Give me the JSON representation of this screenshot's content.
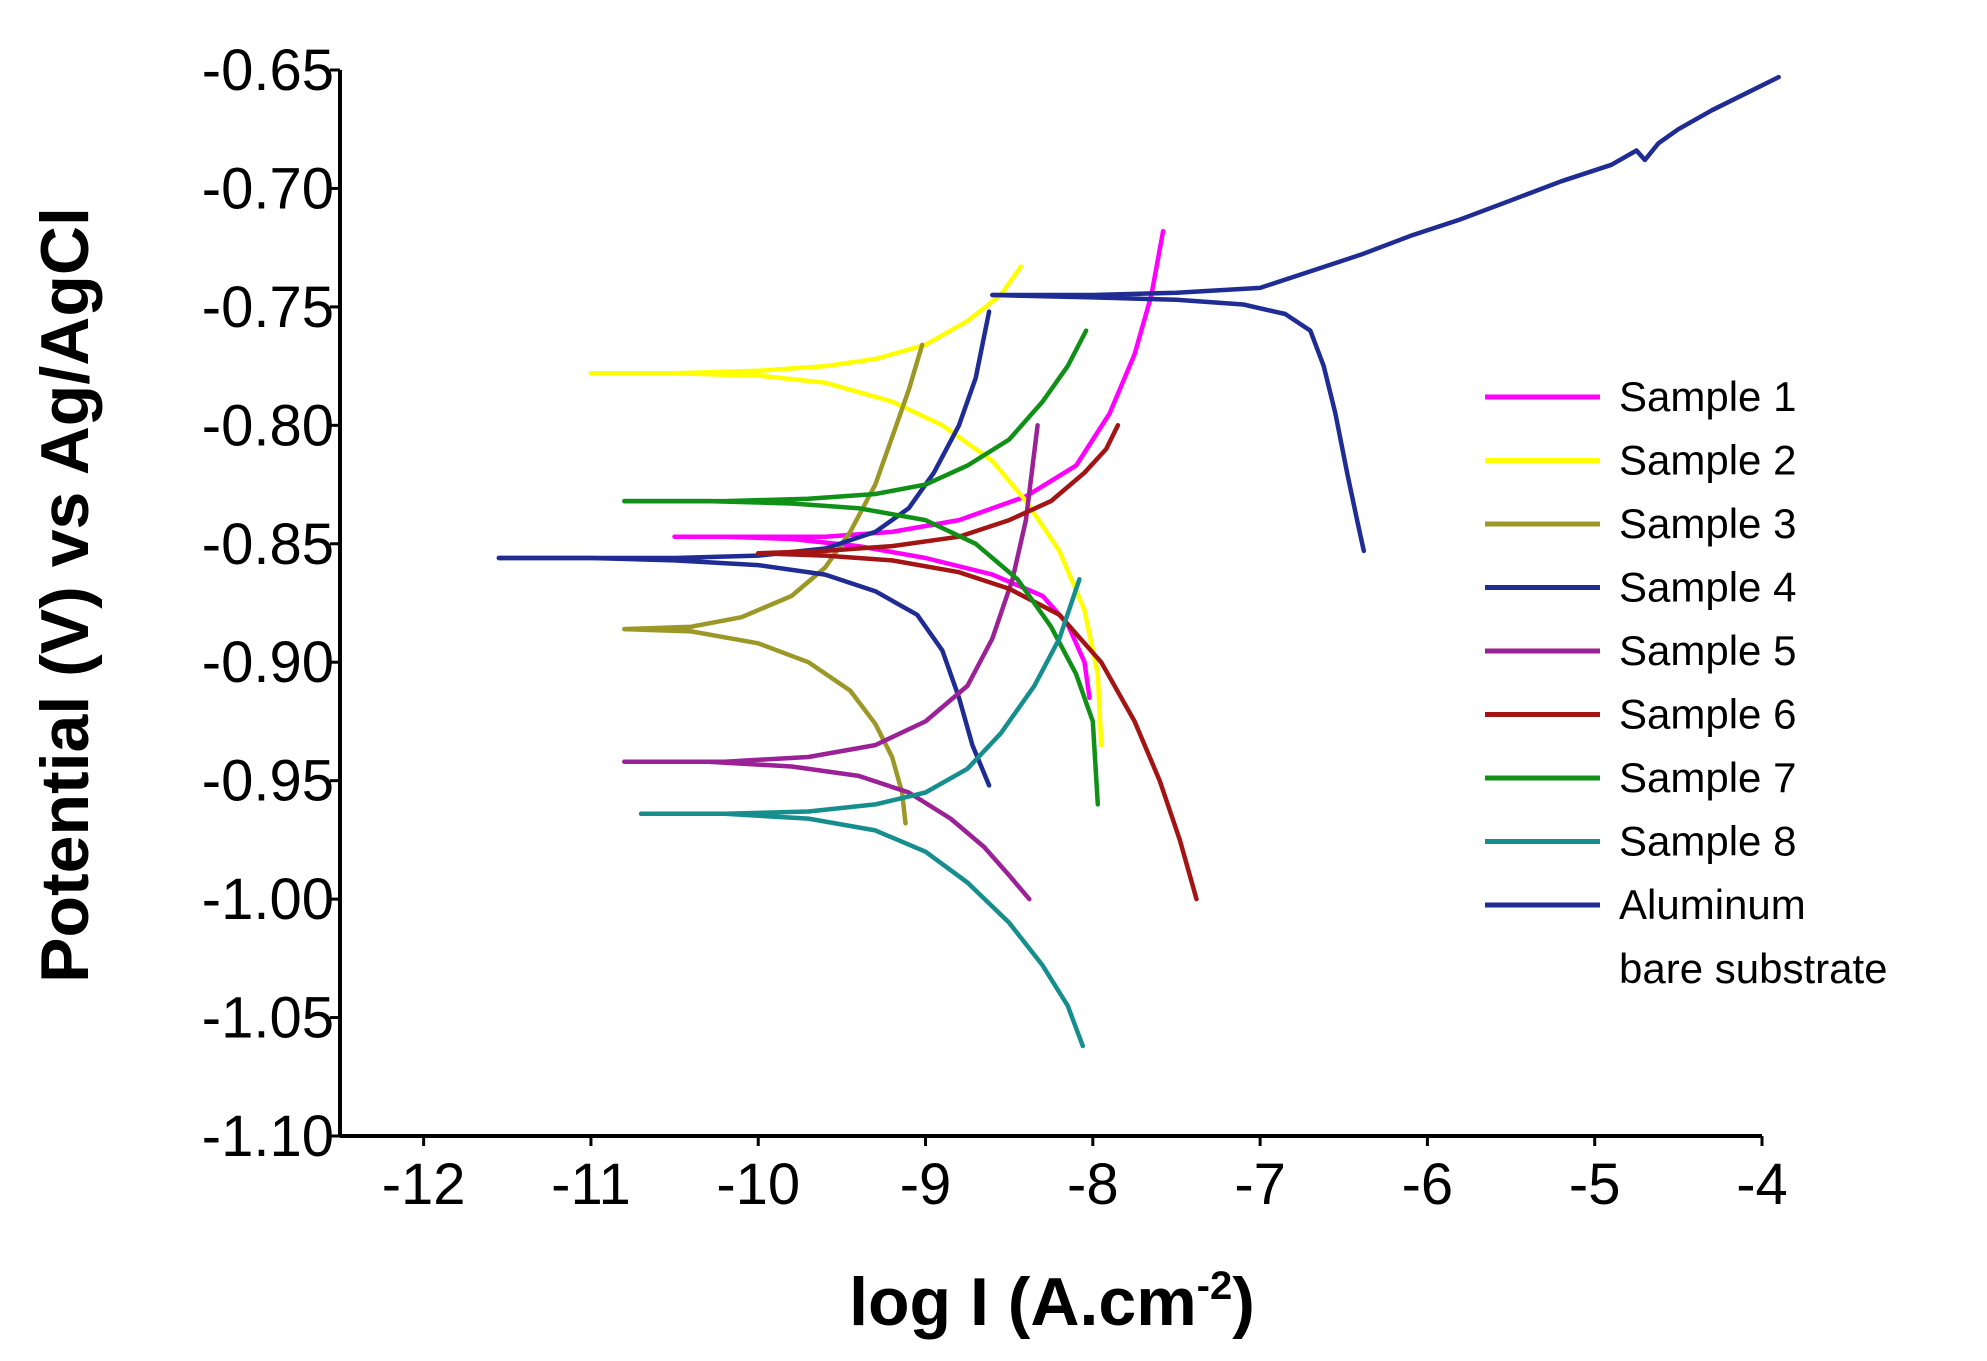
{
  "chart_data": {
    "type": "line",
    "title": "",
    "xlabel": "log I (A.cm",
    "xlabel_sup": "-2",
    "xlabel_suffix": ")",
    "ylabel": "Potential (V) vs Ag/AgCl",
    "xlim": [
      -12.5,
      -4
    ],
    "ylim": [
      -1.1,
      -0.65
    ],
    "x_ticks": [
      -12,
      -11,
      -10,
      -9,
      -8,
      -7,
      -6,
      -5,
      -4
    ],
    "x_tick_labels": [
      "-12",
      "-11",
      "-10",
      "-9",
      "-8",
      "-7",
      "-6",
      "-5",
      "-4"
    ],
    "y_ticks": [
      -0.65,
      -0.7,
      -0.75,
      -0.8,
      -0.85,
      -0.9,
      -0.95,
      -1.0,
      -1.05,
      -1.1
    ],
    "y_tick_labels": [
      "-0.65",
      "-0.70",
      "-0.75",
      "-0.80",
      "-0.85",
      "-0.90",
      "-0.95",
      "-1.00",
      "-1.05",
      "-1.10"
    ],
    "grid": false,
    "legend_position": "right",
    "series": [
      {
        "name": "Sample 1",
        "color": "#ff00ff",
        "cathodic": [
          [
            -10.5,
            -0.847
          ],
          [
            -10.2,
            -0.847
          ],
          [
            -9.8,
            -0.848
          ],
          [
            -9.4,
            -0.851
          ],
          [
            -9.0,
            -0.856
          ],
          [
            -8.6,
            -0.863
          ],
          [
            -8.3,
            -0.872
          ],
          [
            -8.15,
            -0.884
          ],
          [
            -8.05,
            -0.9
          ],
          [
            -8.02,
            -0.915
          ]
        ],
        "anodic": [
          [
            -10.5,
            -0.847
          ],
          [
            -10.0,
            -0.847
          ],
          [
            -9.6,
            -0.847
          ],
          [
            -9.2,
            -0.845
          ],
          [
            -8.8,
            -0.84
          ],
          [
            -8.4,
            -0.83
          ],
          [
            -8.1,
            -0.817
          ],
          [
            -7.9,
            -0.795
          ],
          [
            -7.75,
            -0.77
          ],
          [
            -7.65,
            -0.745
          ],
          [
            -7.58,
            -0.718
          ]
        ]
      },
      {
        "name": "Sample 2",
        "color": "#ffff00",
        "cathodic": [
          [
            -11.0,
            -0.778
          ],
          [
            -10.5,
            -0.778
          ],
          [
            -10.0,
            -0.779
          ],
          [
            -9.6,
            -0.782
          ],
          [
            -9.2,
            -0.79
          ],
          [
            -8.9,
            -0.8
          ],
          [
            -8.6,
            -0.815
          ],
          [
            -8.4,
            -0.832
          ],
          [
            -8.2,
            -0.853
          ],
          [
            -8.05,
            -0.878
          ],
          [
            -7.97,
            -0.905
          ],
          [
            -7.95,
            -0.935
          ]
        ],
        "anodic": [
          [
            -11.0,
            -0.778
          ],
          [
            -10.5,
            -0.778
          ],
          [
            -10.0,
            -0.777
          ],
          [
            -9.6,
            -0.775
          ],
          [
            -9.3,
            -0.772
          ],
          [
            -9.0,
            -0.766
          ],
          [
            -8.75,
            -0.756
          ],
          [
            -8.55,
            -0.745
          ],
          [
            -8.43,
            -0.733
          ]
        ]
      },
      {
        "name": "Sample 3",
        "color": "#9c9828",
        "cathodic": [
          [
            -10.8,
            -0.886
          ],
          [
            -10.4,
            -0.887
          ],
          [
            -10.0,
            -0.892
          ],
          [
            -9.7,
            -0.9
          ],
          [
            -9.45,
            -0.912
          ],
          [
            -9.3,
            -0.926
          ],
          [
            -9.2,
            -0.94
          ],
          [
            -9.14,
            -0.955
          ],
          [
            -9.12,
            -0.968
          ]
        ],
        "anodic": [
          [
            -10.8,
            -0.886
          ],
          [
            -10.4,
            -0.885
          ],
          [
            -10.1,
            -0.881
          ],
          [
            -9.8,
            -0.872
          ],
          [
            -9.6,
            -0.86
          ],
          [
            -9.45,
            -0.845
          ],
          [
            -9.3,
            -0.825
          ],
          [
            -9.2,
            -0.805
          ],
          [
            -9.1,
            -0.785
          ],
          [
            -9.02,
            -0.766
          ]
        ]
      },
      {
        "name": "Sample 4",
        "color": "#1f2c94",
        "cathodic": [
          [
            -11.55,
            -0.856
          ],
          [
            -11.0,
            -0.856
          ],
          [
            -10.5,
            -0.857
          ],
          [
            -10.0,
            -0.859
          ],
          [
            -9.6,
            -0.863
          ],
          [
            -9.3,
            -0.87
          ],
          [
            -9.05,
            -0.88
          ],
          [
            -8.9,
            -0.895
          ],
          [
            -8.8,
            -0.915
          ],
          [
            -8.72,
            -0.935
          ],
          [
            -8.62,
            -0.952
          ]
        ],
        "anodic": [
          [
            -11.55,
            -0.856
          ],
          [
            -11.0,
            -0.856
          ],
          [
            -10.5,
            -0.856
          ],
          [
            -10.0,
            -0.855
          ],
          [
            -9.6,
            -0.852
          ],
          [
            -9.3,
            -0.845
          ],
          [
            -9.1,
            -0.835
          ],
          [
            -8.95,
            -0.82
          ],
          [
            -8.8,
            -0.8
          ],
          [
            -8.7,
            -0.78
          ],
          [
            -8.62,
            -0.752
          ]
        ]
      },
      {
        "name": "Sample 5",
        "color": "#9b2196",
        "cathodic": [
          [
            -10.8,
            -0.942
          ],
          [
            -10.3,
            -0.942
          ],
          [
            -9.8,
            -0.944
          ],
          [
            -9.4,
            -0.948
          ],
          [
            -9.1,
            -0.955
          ],
          [
            -8.85,
            -0.966
          ],
          [
            -8.65,
            -0.978
          ],
          [
            -8.5,
            -0.99
          ],
          [
            -8.38,
            -1.0
          ]
        ],
        "anodic": [
          [
            -10.8,
            -0.942
          ],
          [
            -10.2,
            -0.942
          ],
          [
            -9.7,
            -0.94
          ],
          [
            -9.3,
            -0.935
          ],
          [
            -9.0,
            -0.925
          ],
          [
            -8.75,
            -0.91
          ],
          [
            -8.6,
            -0.89
          ],
          [
            -8.48,
            -0.865
          ],
          [
            -8.4,
            -0.84
          ],
          [
            -8.33,
            -0.8
          ]
        ]
      },
      {
        "name": "Sample 6",
        "color": "#a31515",
        "cathodic": [
          [
            -10.0,
            -0.854
          ],
          [
            -9.6,
            -0.855
          ],
          [
            -9.2,
            -0.857
          ],
          [
            -8.8,
            -0.862
          ],
          [
            -8.5,
            -0.869
          ],
          [
            -8.2,
            -0.88
          ],
          [
            -7.95,
            -0.9
          ],
          [
            -7.75,
            -0.925
          ],
          [
            -7.6,
            -0.95
          ],
          [
            -7.48,
            -0.975
          ],
          [
            -7.38,
            -1.0
          ]
        ],
        "anodic": [
          [
            -10.0,
            -0.854
          ],
          [
            -9.6,
            -0.853
          ],
          [
            -9.2,
            -0.851
          ],
          [
            -8.8,
            -0.847
          ],
          [
            -8.5,
            -0.84
          ],
          [
            -8.25,
            -0.832
          ],
          [
            -8.05,
            -0.82
          ],
          [
            -7.92,
            -0.81
          ],
          [
            -7.85,
            -0.8
          ]
        ]
      },
      {
        "name": "Sample 7",
        "color": "#119018",
        "cathodic": [
          [
            -10.8,
            -0.832
          ],
          [
            -10.3,
            -0.832
          ],
          [
            -9.8,
            -0.833
          ],
          [
            -9.4,
            -0.835
          ],
          [
            -9.0,
            -0.84
          ],
          [
            -8.7,
            -0.85
          ],
          [
            -8.45,
            -0.865
          ],
          [
            -8.25,
            -0.885
          ],
          [
            -8.1,
            -0.905
          ],
          [
            -8.0,
            -0.925
          ],
          [
            -7.97,
            -0.96
          ]
        ],
        "anodic": [
          [
            -10.8,
            -0.832
          ],
          [
            -10.2,
            -0.832
          ],
          [
            -9.7,
            -0.831
          ],
          [
            -9.3,
            -0.829
          ],
          [
            -9.0,
            -0.825
          ],
          [
            -8.75,
            -0.817
          ],
          [
            -8.5,
            -0.806
          ],
          [
            -8.3,
            -0.79
          ],
          [
            -8.15,
            -0.775
          ],
          [
            -8.04,
            -0.76
          ]
        ]
      },
      {
        "name": "Sample 8",
        "color": "#178e8e",
        "cathodic": [
          [
            -10.7,
            -0.964
          ],
          [
            -10.2,
            -0.964
          ],
          [
            -9.7,
            -0.966
          ],
          [
            -9.3,
            -0.971
          ],
          [
            -9.0,
            -0.98
          ],
          [
            -8.75,
            -0.993
          ],
          [
            -8.5,
            -1.01
          ],
          [
            -8.3,
            -1.028
          ],
          [
            -8.15,
            -1.045
          ],
          [
            -8.06,
            -1.062
          ]
        ],
        "anodic": [
          [
            -10.7,
            -0.964
          ],
          [
            -10.2,
            -0.964
          ],
          [
            -9.7,
            -0.963
          ],
          [
            -9.3,
            -0.96
          ],
          [
            -9.0,
            -0.955
          ],
          [
            -8.75,
            -0.945
          ],
          [
            -8.55,
            -0.93
          ],
          [
            -8.35,
            -0.91
          ],
          [
            -8.2,
            -0.89
          ],
          [
            -8.08,
            -0.865
          ]
        ]
      },
      {
        "name": "Aluminum bare substrate",
        "name_lines": [
          "Aluminum",
          "bare substrate"
        ],
        "color": "#1f2c94",
        "cathodic": [
          [
            -8.6,
            -0.745
          ],
          [
            -8.0,
            -0.746
          ],
          [
            -7.5,
            -0.747
          ],
          [
            -7.1,
            -0.749
          ],
          [
            -6.85,
            -0.753
          ],
          [
            -6.7,
            -0.76
          ],
          [
            -6.62,
            -0.775
          ],
          [
            -6.55,
            -0.795
          ],
          [
            -6.48,
            -0.82
          ],
          [
            -6.42,
            -0.84
          ],
          [
            -6.38,
            -0.853
          ]
        ],
        "anodic": [
          [
            -8.6,
            -0.745
          ],
          [
            -8.0,
            -0.745
          ],
          [
            -7.5,
            -0.744
          ],
          [
            -7.0,
            -0.742
          ],
          [
            -6.7,
            -0.735
          ],
          [
            -6.4,
            -0.728
          ],
          [
            -6.1,
            -0.72
          ],
          [
            -5.8,
            -0.713
          ],
          [
            -5.5,
            -0.705
          ],
          [
            -5.2,
            -0.697
          ],
          [
            -4.9,
            -0.69
          ],
          [
            -4.75,
            -0.684
          ],
          [
            -4.7,
            -0.688
          ],
          [
            -4.62,
            -0.681
          ],
          [
            -4.5,
            -0.675
          ],
          [
            -4.3,
            -0.667
          ],
          [
            -4.1,
            -0.66
          ],
          [
            -3.9,
            -0.653
          ]
        ]
      }
    ]
  }
}
